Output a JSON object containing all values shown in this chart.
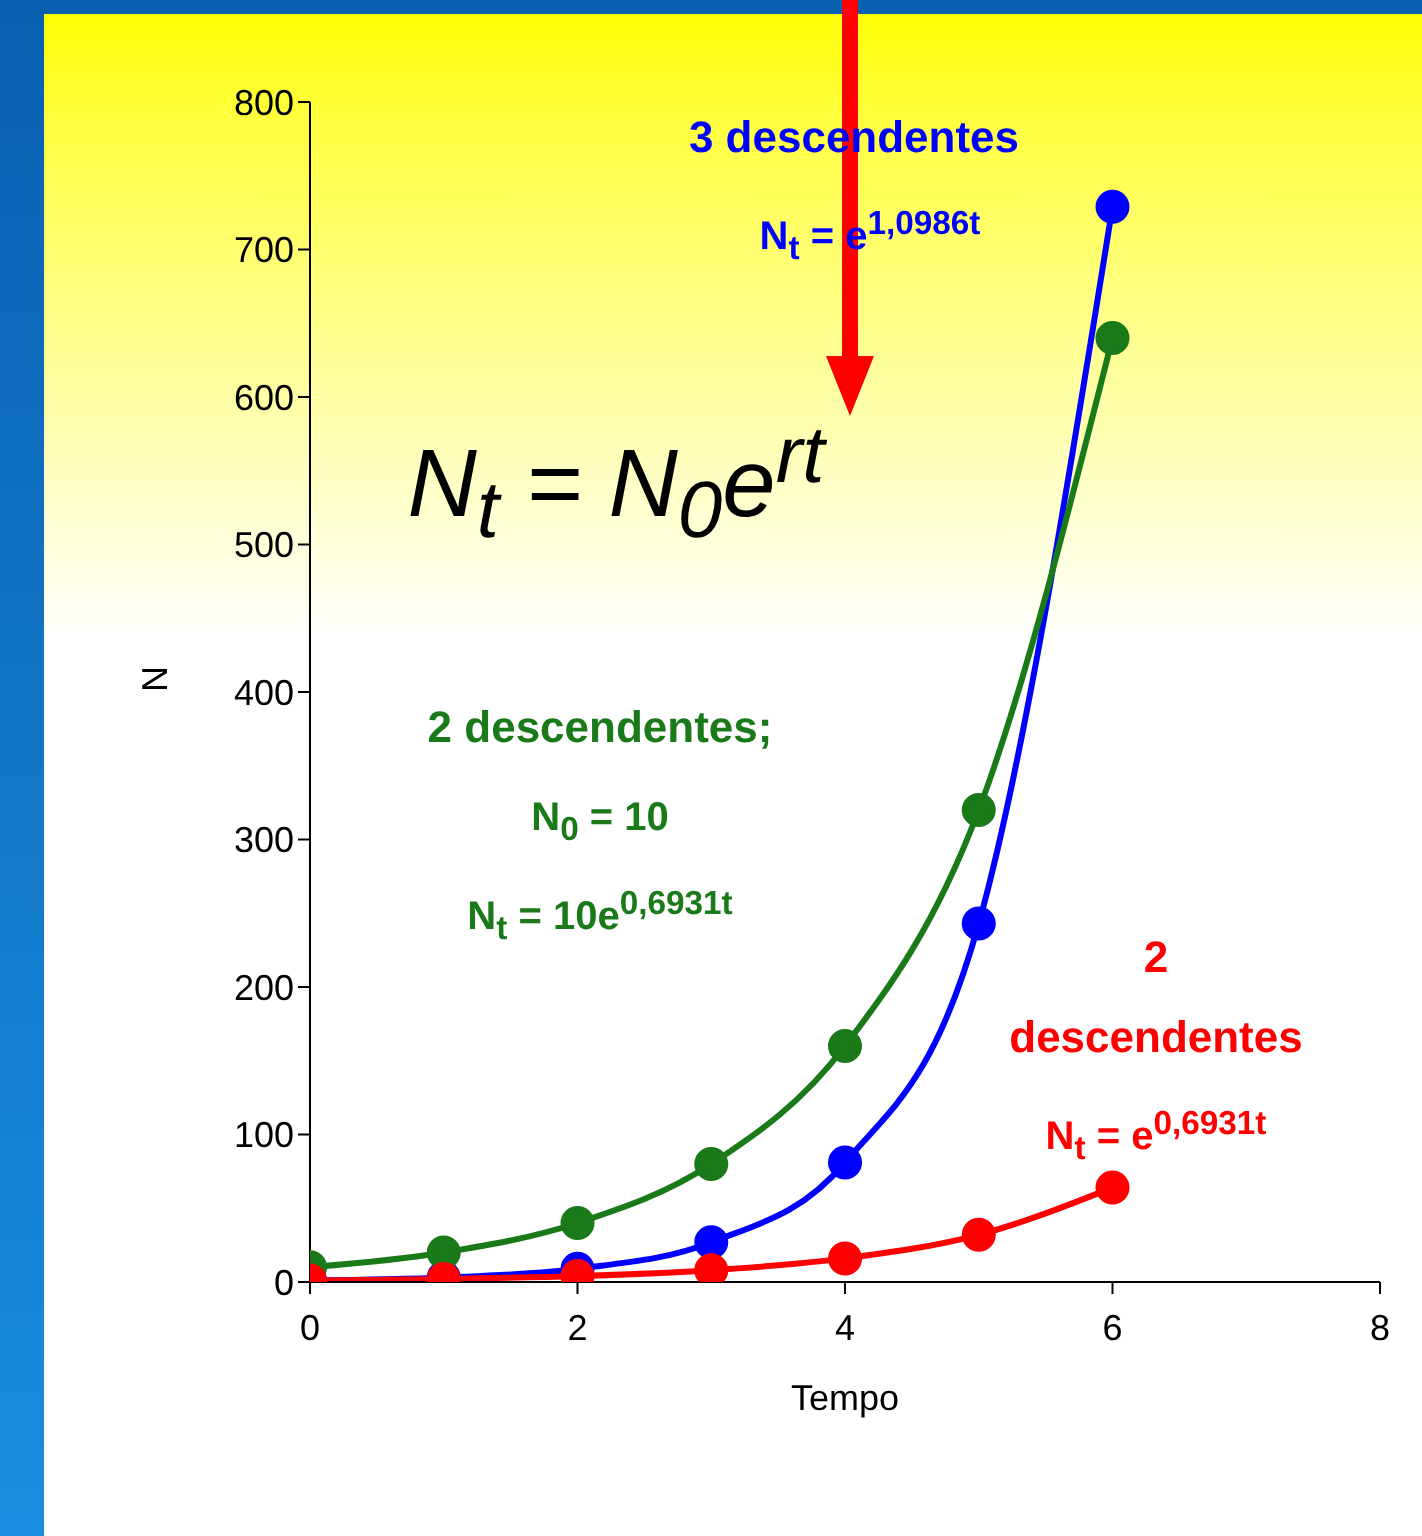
{
  "chart_data": {
    "type": "line",
    "xlabel": "Tempo",
    "ylabel": "N",
    "x": [
      0,
      1,
      2,
      3,
      4,
      5,
      6
    ],
    "series": [
      {
        "name": "3 descendentes",
        "color": "#0000ff",
        "values": [
          1,
          3,
          9,
          27,
          81,
          243,
          729
        ]
      },
      {
        "name": "2 descendentes;",
        "color": "#1a7a1a",
        "values": [
          10,
          20,
          40,
          80,
          160,
          320,
          640
        ]
      },
      {
        "name": "2 descendentes",
        "color": "#ff0000",
        "values": [
          1,
          2,
          4,
          8,
          16,
          32,
          64
        ]
      }
    ],
    "annotations": [
      "N$_{t}$ = e$^{1,0986t}$",
      "N$_{t}$ = N$_{0}$e$^{rt}$",
      "N$_{0}$ = 10",
      "N$_{t}$ = 10e$^{0,6931t}$",
      "N$_{t}$ = e$^{0,6931t}$"
    ],
    "xlim": [
      0,
      8
    ],
    "xticks": [
      0,
      2,
      4,
      6,
      8
    ],
    "ylim": [
      0,
      800
    ],
    "yticks": [
      0,
      100,
      200,
      300,
      400,
      500,
      600,
      700,
      800
    ],
    "grid": false,
    "legend": false,
    "marker": "circle",
    "line_style": "solid"
  }
}
